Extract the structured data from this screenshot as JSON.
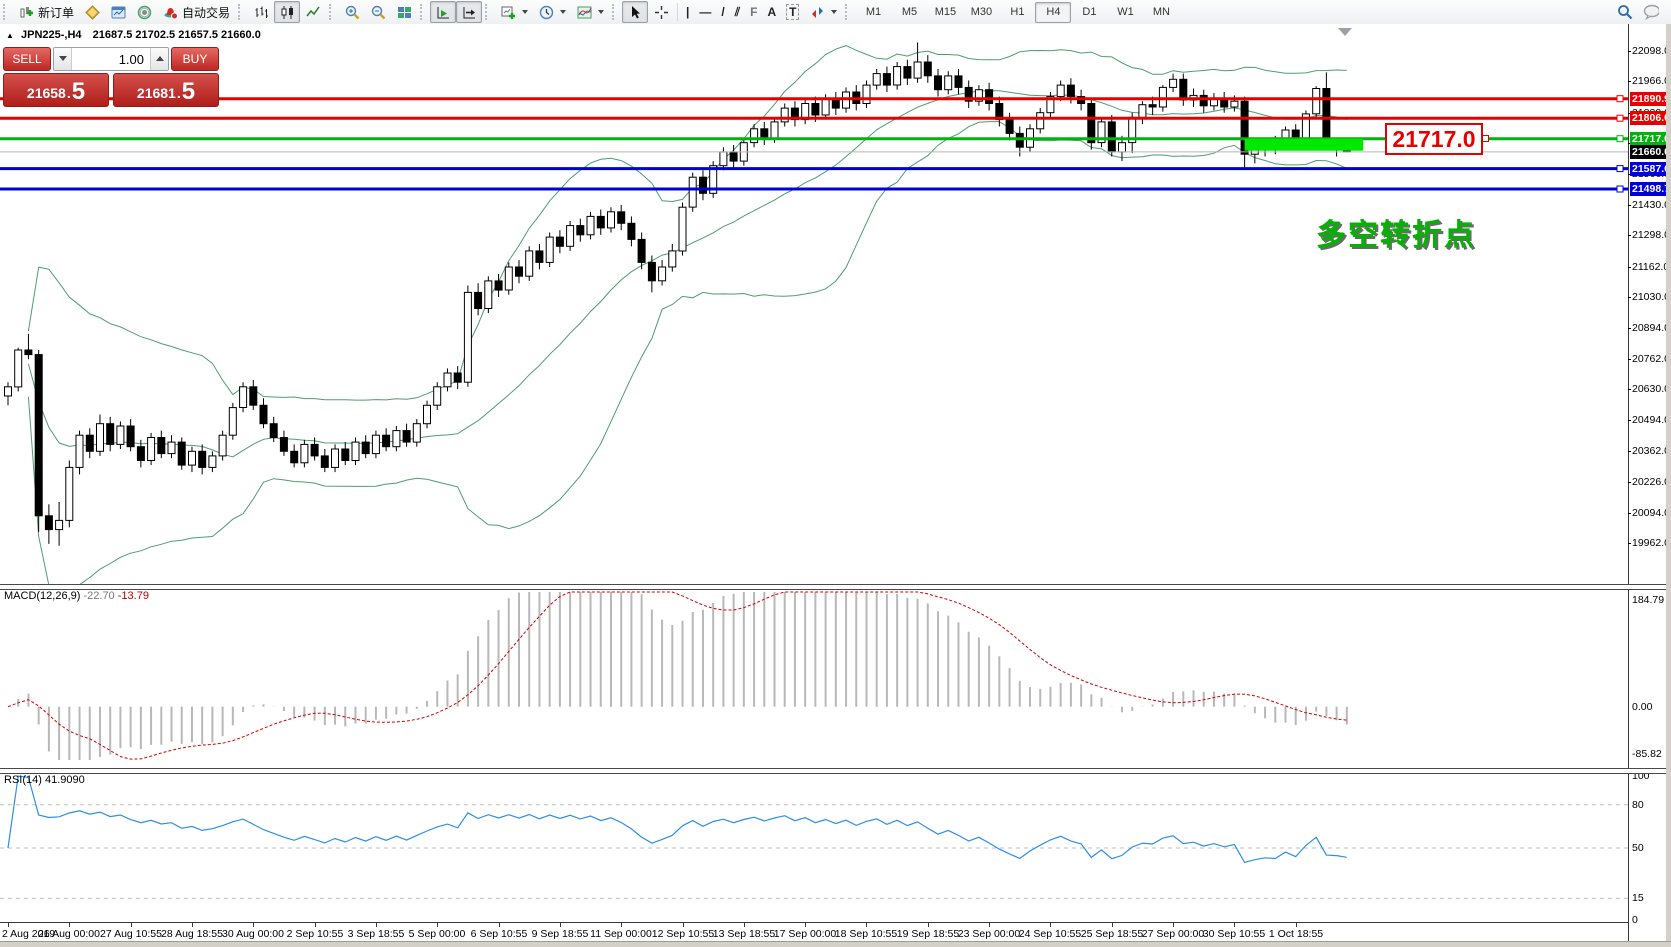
{
  "toolbar": {
    "new_order_label": "新订单",
    "autotrading_label": "自动交易",
    "glyphs": {
      "vline": "|",
      "hline": "—",
      "trendline": "/",
      "channel": "⫽",
      "fibonacci": "F",
      "text": "A",
      "text_label": "T"
    },
    "timeframes": {
      "items": [
        "M1",
        "M5",
        "M15",
        "M30",
        "H1",
        "H4",
        "D1",
        "W1",
        "MN"
      ],
      "active": "H4"
    }
  },
  "chart": {
    "title": {
      "collapse_marker": "▲",
      "symbol_period": "JPN225-,H4",
      "ohlc_text": "21687.5 21702.5 21657.5 21660.0"
    },
    "trade_panel": {
      "sell_label": "SELL",
      "buy_label": "BUY",
      "volume": "1.00",
      "decimal": ".",
      "sell_price": {
        "main": "21658",
        "pip": "5"
      },
      "buy_price": {
        "main": "21681",
        "pip": "5"
      }
    }
  },
  "chart_data": {
    "type": "candlestick",
    "symbol": "JPN225-",
    "period": "H4",
    "ylim": [
      19784,
      22137
    ],
    "y_ticks": [
      "22098.0",
      "21966.0",
      "21830.0",
      "21698.0",
      "21566.0",
      "21430.0",
      "21298.0",
      "21162.0",
      "21030.0",
      "20894.0",
      "20762.0",
      "20630.0",
      "20494.0",
      "20362.0",
      "20226.0",
      "20094.0",
      "19962.0"
    ],
    "x_labels": [
      "2 Aug 2019",
      "26 Aug 00:00",
      "27 Aug 10:55",
      "28 Aug 18:55",
      "30 Aug 00:00",
      "2 Sep 10:55",
      "3 Sep 18:55",
      "5 Sep 00:00",
      "6 Sep 10:55",
      "9 Sep 18:55",
      "11 Sep 00:00",
      "12 Sep 10:55",
      "13 Sep 18:55",
      "17 Sep 00:00",
      "18 Sep 10:55",
      "19 Sep 18:55",
      "23 Sep 00:00",
      "24 Sep 10:55",
      "25 Sep 18:55",
      "27 Sep 00:00",
      "30 Sep 10:55",
      "1 Oct 18:55"
    ],
    "label_every": 6,
    "ohlc": [
      [
        20600,
        20660,
        20560,
        20640
      ],
      [
        20640,
        20810,
        20620,
        20800
      ],
      [
        20800,
        20870,
        20760,
        20780
      ],
      [
        20780,
        20800,
        20010,
        20080
      ],
      [
        20080,
        20130,
        19958,
        20020
      ],
      [
        20020,
        20140,
        19950,
        20060
      ],
      [
        20060,
        20320,
        20030,
        20290
      ],
      [
        20290,
        20450,
        20260,
        20430
      ],
      [
        20430,
        20460,
        20330,
        20360
      ],
      [
        20360,
        20520,
        20340,
        20480
      ],
      [
        20480,
        20510,
        20360,
        20390
      ],
      [
        20390,
        20490,
        20370,
        20470
      ],
      [
        20470,
        20500,
        20360,
        20380
      ],
      [
        20380,
        20410,
        20290,
        20320
      ],
      [
        20320,
        20440,
        20300,
        20420
      ],
      [
        20420,
        20450,
        20330,
        20350
      ],
      [
        20350,
        20430,
        20330,
        20400
      ],
      [
        20400,
        20420,
        20280,
        20300
      ],
      [
        20300,
        20380,
        20270,
        20360
      ],
      [
        20360,
        20390,
        20260,
        20290
      ],
      [
        20290,
        20360,
        20270,
        20340
      ],
      [
        20340,
        20450,
        20320,
        20430
      ],
      [
        20430,
        20570,
        20410,
        20550
      ],
      [
        20550,
        20660,
        20530,
        20640
      ],
      [
        20640,
        20670,
        20540,
        20560
      ],
      [
        20560,
        20590,
        20460,
        20480
      ],
      [
        20480,
        20510,
        20400,
        20420
      ],
      [
        20420,
        20450,
        20340,
        20360
      ],
      [
        20360,
        20390,
        20290,
        20310
      ],
      [
        20310,
        20410,
        20290,
        20390
      ],
      [
        20390,
        20420,
        20320,
        20340
      ],
      [
        20340,
        20370,
        20270,
        20290
      ],
      [
        20290,
        20390,
        20270,
        20370
      ],
      [
        20370,
        20400,
        20300,
        20320
      ],
      [
        20320,
        20420,
        20300,
        20400
      ],
      [
        20400,
        20430,
        20330,
        20350
      ],
      [
        20350,
        20450,
        20330,
        20430
      ],
      [
        20430,
        20460,
        20360,
        20380
      ],
      [
        20380,
        20470,
        20360,
        20450
      ],
      [
        20450,
        20480,
        20380,
        20400
      ],
      [
        20400,
        20500,
        20380,
        20480
      ],
      [
        20480,
        20580,
        20460,
        20560
      ],
      [
        20560,
        20660,
        20540,
        20640
      ],
      [
        20640,
        20720,
        20620,
        20700
      ],
      [
        20700,
        20730,
        20630,
        20660
      ],
      [
        20660,
        21080,
        20640,
        21050
      ],
      [
        21050,
        21090,
        20950,
        20980
      ],
      [
        20980,
        21120,
        20960,
        21100
      ],
      [
        21100,
        21130,
        21030,
        21060
      ],
      [
        21060,
        21180,
        21040,
        21160
      ],
      [
        21160,
        21190,
        21090,
        21120
      ],
      [
        21120,
        21250,
        21100,
        21230
      ],
      [
        21230,
        21260,
        21150,
        21180
      ],
      [
        21180,
        21310,
        21160,
        21290
      ],
      [
        21290,
        21320,
        21220,
        21250
      ],
      [
        21250,
        21360,
        21230,
        21340
      ],
      [
        21340,
        21370,
        21270,
        21300
      ],
      [
        21300,
        21400,
        21280,
        21380
      ],
      [
        21380,
        21410,
        21300,
        21330
      ],
      [
        21330,
        21420,
        21310,
        21400
      ],
      [
        21400,
        21430,
        21320,
        21350
      ],
      [
        21350,
        21380,
        21250,
        21280
      ],
      [
        21280,
        21310,
        21150,
        21180
      ],
      [
        21180,
        21210,
        21050,
        21100
      ],
      [
        21100,
        21190,
        21080,
        21160
      ],
      [
        21160,
        21260,
        21140,
        21230
      ],
      [
        21230,
        21440,
        21210,
        21420
      ],
      [
        21420,
        21570,
        21400,
        21550
      ],
      [
        21550,
        21580,
        21450,
        21480
      ],
      [
        21480,
        21620,
        21460,
        21600
      ],
      [
        21600,
        21680,
        21580,
        21660
      ],
      [
        21660,
        21690,
        21590,
        21620
      ],
      [
        21620,
        21720,
        21600,
        21700
      ],
      [
        21700,
        21780,
        21680,
        21760
      ],
      [
        21760,
        21790,
        21690,
        21720
      ],
      [
        21720,
        21810,
        21700,
        21790
      ],
      [
        21790,
        21870,
        21770,
        21850
      ],
      [
        21850,
        21880,
        21770,
        21800
      ],
      [
        21800,
        21890,
        21780,
        21870
      ],
      [
        21870,
        21900,
        21790,
        21820
      ],
      [
        21820,
        21910,
        21800,
        21890
      ],
      [
        21890,
        21920,
        21820,
        21850
      ],
      [
        21850,
        21940,
        21830,
        21920
      ],
      [
        21920,
        21950,
        21840,
        21870
      ],
      [
        21870,
        21970,
        21850,
        21950
      ],
      [
        21950,
        22020,
        21930,
        22000
      ],
      [
        22000,
        22030,
        21920,
        21950
      ],
      [
        21950,
        22050,
        21930,
        22030
      ],
      [
        22030,
        22060,
        21950,
        21980
      ],
      [
        21980,
        22135,
        21960,
        22050
      ],
      [
        22050,
        22080,
        21960,
        21990
      ],
      [
        21990,
        22020,
        21900,
        21930
      ],
      [
        21930,
        22010,
        21910,
        21990
      ],
      [
        21990,
        22020,
        21910,
        21940
      ],
      [
        21940,
        21970,
        21850,
        21880
      ],
      [
        21880,
        21950,
        21860,
        21930
      ],
      [
        21930,
        21960,
        21840,
        21870
      ],
      [
        21870,
        21900,
        21770,
        21800
      ],
      [
        21800,
        21830,
        21710,
        21740
      ],
      [
        21740,
        21770,
        21640,
        21680
      ],
      [
        21680,
        21780,
        21660,
        21760
      ],
      [
        21760,
        21850,
        21740,
        21830
      ],
      [
        21830,
        21920,
        21810,
        21900
      ],
      [
        21900,
        21970,
        21880,
        21950
      ],
      [
        21950,
        21980,
        21870,
        21900
      ],
      [
        21900,
        21930,
        21840,
        21870
      ],
      [
        21870,
        21890,
        21670,
        21700
      ],
      [
        21700,
        21810,
        21680,
        21790
      ],
      [
        21790,
        21820,
        21640,
        21660
      ],
      [
        21660,
        21730,
        21620,
        21700
      ],
      [
        21700,
        21830,
        21655,
        21810
      ],
      [
        21810,
        21880,
        21780,
        21865
      ],
      [
        21865,
        21900,
        21820,
        21855
      ],
      [
        21855,
        21950,
        21835,
        21940
      ],
      [
        21940,
        22000,
        21920,
        21975
      ],
      [
        21975,
        22000,
        21860,
        21885
      ],
      [
        21885,
        21935,
        21855,
        21905
      ],
      [
        21905,
        21930,
        21830,
        21860
      ],
      [
        21860,
        21915,
        21840,
        21890
      ],
      [
        21890,
        21920,
        21830,
        21855
      ],
      [
        21855,
        21905,
        21835,
        21880
      ],
      [
        21880,
        21900,
        21590,
        21650
      ],
      [
        21650,
        21700,
        21610,
        21680
      ],
      [
        21680,
        21720,
        21640,
        21700
      ],
      [
        21700,
        21730,
        21650,
        21690
      ],
      [
        21690,
        21770,
        21670,
        21755
      ],
      [
        21755,
        21780,
        21680,
        21700
      ],
      [
        21700,
        21840,
        21690,
        21825
      ],
      [
        21825,
        21945,
        21805,
        21935
      ],
      [
        21935,
        22005,
        21680,
        21695
      ],
      [
        21695,
        21720,
        21640,
        21687
      ],
      [
        21687.5,
        21702.5,
        21657.5,
        21660.0
      ]
    ],
    "indicators": {
      "bollinger": {
        "period": 20,
        "deviation": 2,
        "color": "#4d9e6f"
      },
      "macd": {
        "label": "MACD(12,26,9)",
        "value_main": "-22.70",
        "value_signal": "-13.79",
        "fast": 12,
        "slow": 26,
        "signal": 9,
        "ylim": [
          -85.82,
          184.79
        ],
        "axis_labels": [
          "184.79",
          "0.00",
          "-85.82"
        ],
        "hist_color": "#b8b8b8",
        "signal_color": "#d40000"
      },
      "rsi": {
        "label": "RSI(14)",
        "value": "41.9090",
        "period": 14,
        "ylim": [
          0,
          100
        ],
        "levels": [
          80,
          50,
          15
        ],
        "axis_labels": [
          "100",
          "80",
          "50",
          "15",
          "0"
        ],
        "color": "#2e8ee8",
        "level_color": "#c0c0c0"
      }
    },
    "objects": {
      "hlines": [
        {
          "price": 21890.9,
          "label": "21890.9",
          "color": "#e80000",
          "width": 3
        },
        {
          "price": 21806.0,
          "label": "21806.0",
          "color": "#e80000",
          "width": 3
        },
        {
          "price": 21717.0,
          "label": "21717.0",
          "color": "#00b40c",
          "width": 3
        },
        {
          "price": 21587.6,
          "label": "21587.6",
          "color": "#0000d8",
          "width": 3
        },
        {
          "price": 21498.7,
          "label": "21498.7",
          "color": "#0000d8",
          "width": 3
        }
      ],
      "current_price": {
        "price": 21660.0,
        "label": "21660.0",
        "line_color": "#b8b8b8",
        "badge_bg": "#000000"
      },
      "rectangle": {
        "from_candle": 121,
        "to_candle": 132.6,
        "price_top": 21717,
        "price_bottom": 21665,
        "color": "#00e800"
      },
      "callout": {
        "text": "21717.0"
      },
      "annotation": {
        "text": "多空转折点"
      }
    },
    "colors": {
      "bull": "#ffffff",
      "bear": "#000000",
      "outline": "#000000",
      "background": "#ffffff"
    }
  }
}
